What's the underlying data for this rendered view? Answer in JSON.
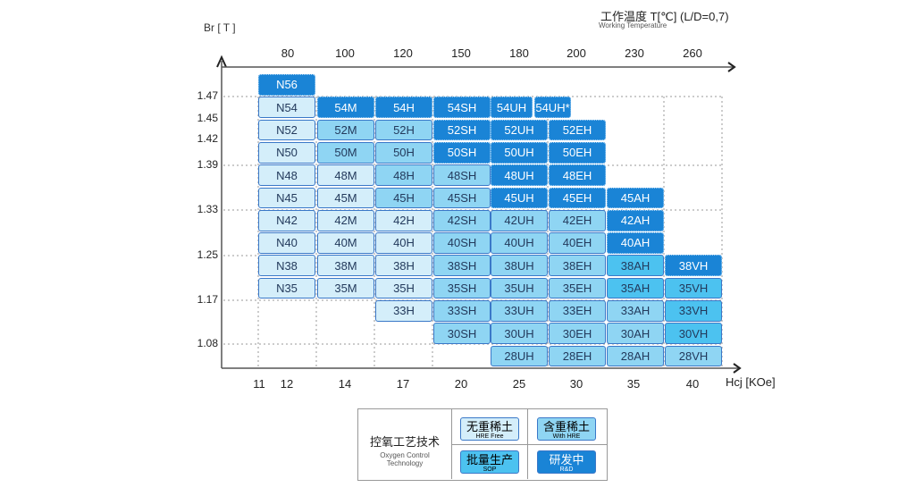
{
  "chart_data": {
    "type": "table",
    "title": "工作温度 T[℃] (L/D=0,7)",
    "subtitle": "Working Temperature",
    "ylabel": "Br [ T ]",
    "xlabel": "Hcj [KOe]",
    "top_ticks": [
      "80",
      "100",
      "120",
      "150",
      "180",
      "200",
      "230",
      "260"
    ],
    "bottom_ticks": [
      "11",
      "12",
      "14",
      "17",
      "20",
      "25",
      "30",
      "35",
      "40"
    ],
    "y_ticks": [
      "1.47",
      "1.45",
      "1.42",
      "1.39",
      "1.33",
      "1.25",
      "1.17",
      "1.08"
    ],
    "colors": {
      "free": "#d4eefa",
      "hre": "#8fd5f3",
      "sop": "#4cc2f0",
      "rd": "#1a84d6",
      "border": "#3a78c8"
    },
    "rows": [
      [
        [
          "N56",
          "rd"
        ],
        null,
        null,
        null,
        null,
        null,
        null,
        null
      ],
      [
        [
          "N54",
          "free"
        ],
        [
          "54M",
          "rd"
        ],
        [
          "54H",
          "rd"
        ],
        [
          "54SH",
          "rd"
        ],
        [
          "54UH",
          "rd"
        ],
        [
          "54UH*",
          "rd"
        ],
        null,
        null
      ],
      [
        [
          "N52",
          "free"
        ],
        [
          "52M",
          "hre"
        ],
        [
          "52H",
          "hre"
        ],
        [
          "52SH",
          "rd"
        ],
        [
          "52UH",
          "rd"
        ],
        [
          "52EH",
          "rd"
        ],
        null,
        null
      ],
      [
        [
          "N50",
          "free"
        ],
        [
          "50M",
          "hre"
        ],
        [
          "50H",
          "hre"
        ],
        [
          "50SH",
          "rd"
        ],
        [
          "50UH",
          "rd"
        ],
        [
          "50EH",
          "rd"
        ],
        null,
        null
      ],
      [
        [
          "N48",
          "free"
        ],
        [
          "48M",
          "free"
        ],
        [
          "48H",
          "hre"
        ],
        [
          "48SH",
          "hre"
        ],
        [
          "48UH",
          "rd"
        ],
        [
          "48EH",
          "rd"
        ],
        null,
        null
      ],
      [
        [
          "N45",
          "free"
        ],
        [
          "45M",
          "free"
        ],
        [
          "45H",
          "hre"
        ],
        [
          "45SH",
          "hre"
        ],
        [
          "45UH",
          "rd"
        ],
        [
          "45EH",
          "rd"
        ],
        [
          "45AH",
          "rd"
        ],
        null
      ],
      [
        [
          "N42",
          "free"
        ],
        [
          "42M",
          "free"
        ],
        [
          "42H",
          "free"
        ],
        [
          "42SH",
          "hre"
        ],
        [
          "42UH",
          "hre"
        ],
        [
          "42EH",
          "hre"
        ],
        [
          "42AH",
          "rd"
        ],
        null
      ],
      [
        [
          "N40",
          "free"
        ],
        [
          "40M",
          "free"
        ],
        [
          "40H",
          "free"
        ],
        [
          "40SH",
          "hre"
        ],
        [
          "40UH",
          "hre"
        ],
        [
          "40EH",
          "hre"
        ],
        [
          "40AH",
          "rd"
        ],
        null
      ],
      [
        [
          "N38",
          "free"
        ],
        [
          "38M",
          "free"
        ],
        [
          "38H",
          "free"
        ],
        [
          "38SH",
          "hre"
        ],
        [
          "38UH",
          "hre"
        ],
        [
          "38EH",
          "hre"
        ],
        [
          "38AH",
          "sop"
        ],
        [
          "38VH",
          "rd"
        ]
      ],
      [
        [
          "N35",
          "free"
        ],
        [
          "35M",
          "free"
        ],
        [
          "35H",
          "free"
        ],
        [
          "35SH",
          "hre"
        ],
        [
          "35UH",
          "hre"
        ],
        [
          "35EH",
          "hre"
        ],
        [
          "35AH",
          "sop"
        ],
        [
          "35VH",
          "sop"
        ]
      ],
      [
        null,
        null,
        [
          "33H",
          "free"
        ],
        [
          "33SH",
          "hre"
        ],
        [
          "33UH",
          "hre"
        ],
        [
          "33EH",
          "hre"
        ],
        [
          "33AH",
          "hre"
        ],
        [
          "33VH",
          "sop"
        ]
      ],
      [
        null,
        null,
        null,
        [
          "30SH",
          "hre"
        ],
        [
          "30UH",
          "hre"
        ],
        [
          "30EH",
          "hre"
        ],
        [
          "30AH",
          "hre"
        ],
        [
          "30VH",
          "sop"
        ]
      ],
      [
        null,
        null,
        null,
        null,
        [
          "28UH",
          "hre"
        ],
        [
          "28EH",
          "hre"
        ],
        [
          "28AH",
          "hre"
        ],
        [
          "28VH",
          "hre"
        ]
      ]
    ]
  },
  "legend": {
    "title_zh": "控氧工艺技术",
    "title_en": "Oxygen Control Technology",
    "items": [
      {
        "zh": "无重稀土",
        "en": "HRE Free",
        "type": "free"
      },
      {
        "zh": "含重稀土",
        "en": "With HRE",
        "type": "hre"
      },
      {
        "zh": "批量生产",
        "en": "SOP",
        "type": "sop"
      },
      {
        "zh": "研发中",
        "en": "R&D",
        "type": "rd"
      }
    ]
  }
}
